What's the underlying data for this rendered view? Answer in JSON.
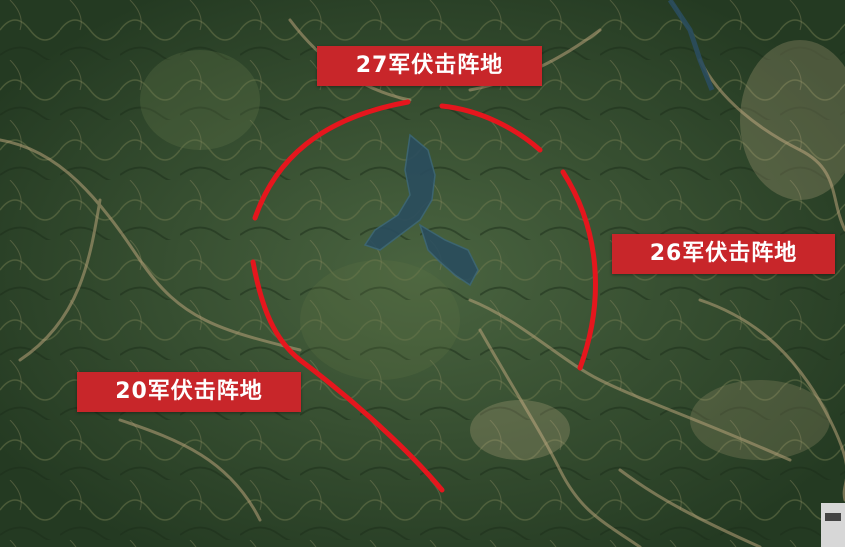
{
  "map": {
    "labels": {
      "army_27": "27军伏击阵地",
      "army_26": "26军伏击阵地",
      "army_20": "20军伏击阵地"
    },
    "colors": {
      "label_bg": "#c8262a",
      "label_text": "#ffffff",
      "arc": "#e5161d",
      "terrain": "#2f4a2c",
      "ridge": "#b9a37a",
      "water": "#2a4d5e"
    }
  }
}
